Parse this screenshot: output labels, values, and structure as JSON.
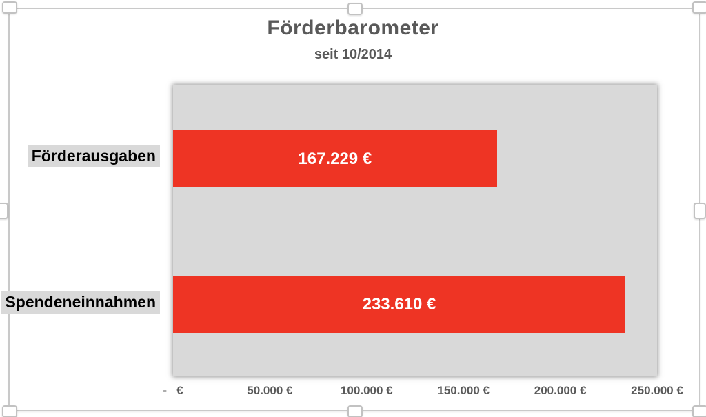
{
  "chart_data": {
    "type": "bar",
    "orientation": "horizontal",
    "title": "Förderbarometer",
    "subtitle": "seit 10/2014",
    "categories": [
      "Förderausgaben",
      "Spendeneinnahmen"
    ],
    "values": [
      167229,
      233610
    ],
    "value_labels": [
      "167.229 €",
      "233.610 €"
    ],
    "xlim": [
      0,
      250000
    ],
    "x_ticks": [
      0,
      50000,
      100000,
      150000,
      200000,
      250000
    ],
    "x_tick_labels": [
      "-   €",
      "50.000 €",
      "100.000 €",
      "150.000 €",
      "200.000 €",
      "250.000 €"
    ],
    "grid": false,
    "legend": false,
    "plot_background": "#d9d9d9",
    "colors": {
      "bar": "#ee3424",
      "plot_background": "#d9d9d9",
      "title_text": "#595959",
      "axis_text": "#595959",
      "category_text": "#000000",
      "category_highlight": "#d9d9d9",
      "value_label_text": "#ffffff"
    }
  },
  "selection": {
    "selected": true,
    "handles": [
      "top-left",
      "top-center",
      "top-right",
      "left-center",
      "right-center",
      "bottom-left",
      "bottom-center",
      "bottom-right"
    ]
  }
}
